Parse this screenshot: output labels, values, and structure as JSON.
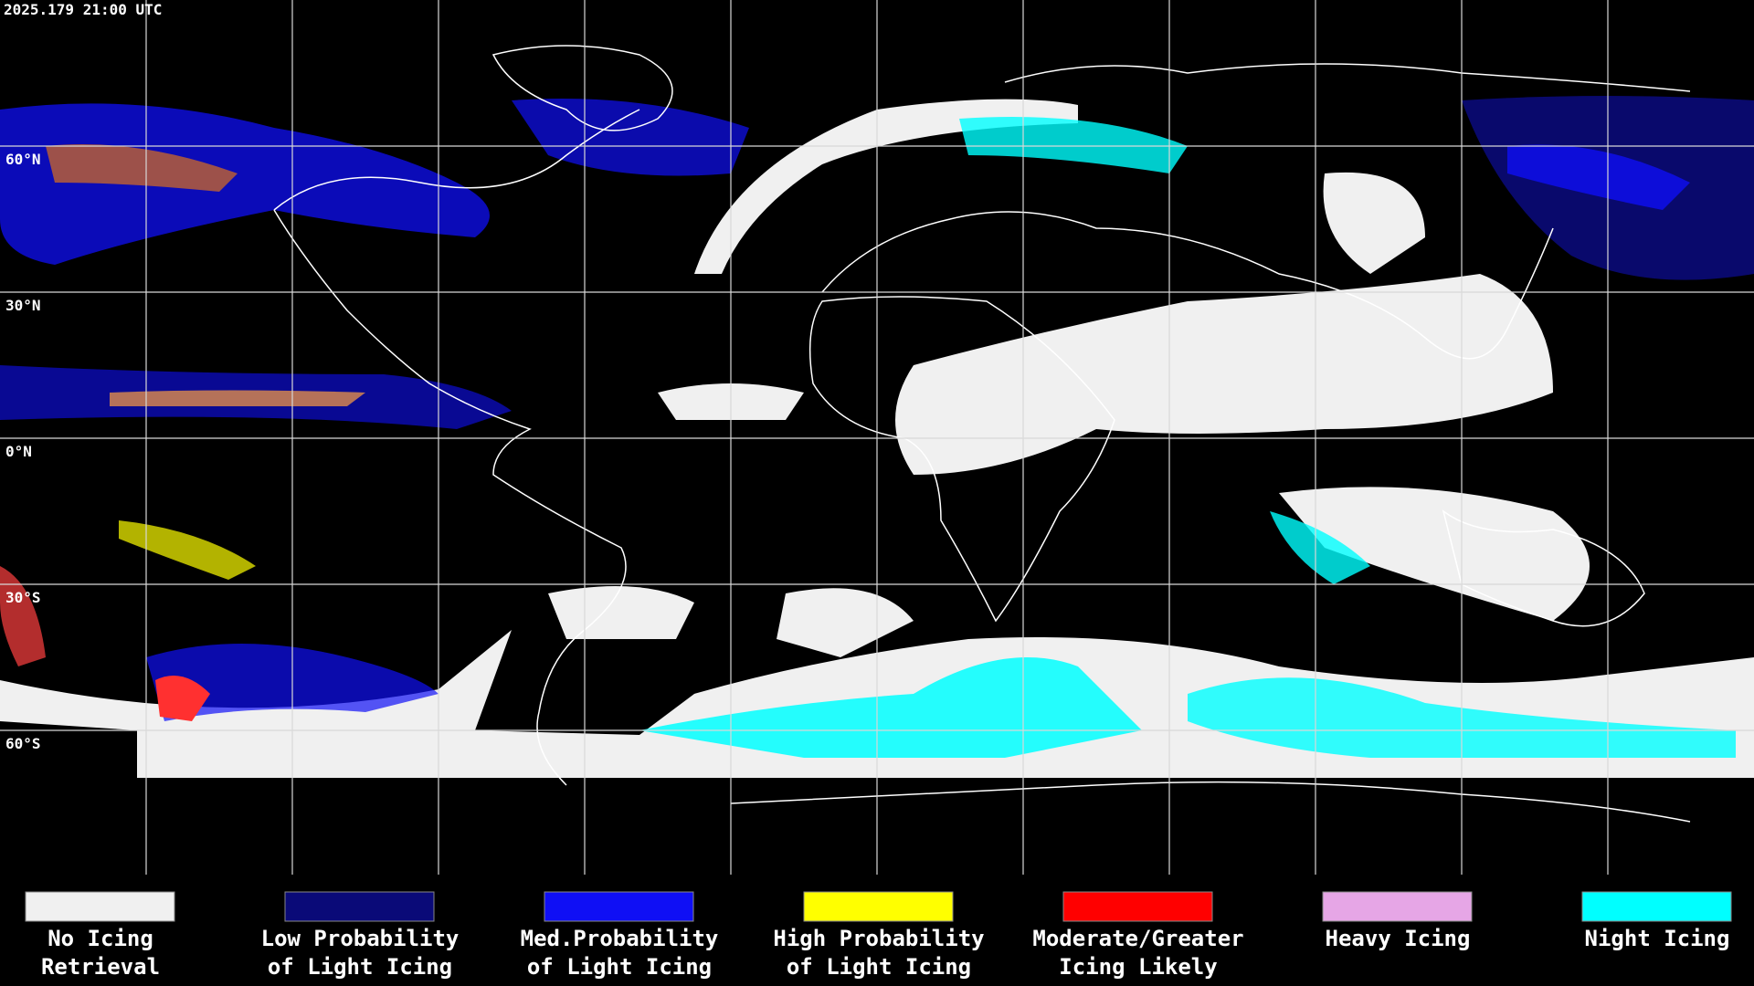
{
  "timestamp": "2025.179 21:00 UTC",
  "latitude_labels": [
    "60°N",
    "30°N",
    "0°N",
    "30°S",
    "60°S"
  ],
  "legend": [
    {
      "label": [
        "No Icing",
        "Retrieval"
      ],
      "color": "#f0f0f0"
    },
    {
      "label": [
        "Low Probability",
        "of Light Icing"
      ],
      "color": "#0a0a78"
    },
    {
      "label": [
        "Med.Probability",
        "of Light Icing"
      ],
      "color": "#0f0ff5"
    },
    {
      "label": [
        "High Probability",
        "of Light Icing"
      ],
      "color": "#ffff00"
    },
    {
      "label": [
        "Moderate/Greater",
        "Icing Likely"
      ],
      "color": "#ff0000"
    },
    {
      "label": [
        "Heavy Icing"
      ],
      "color": "#e6a6e6"
    },
    {
      "label": [
        "Night Icing"
      ],
      "color": "#00ffff"
    }
  ]
}
